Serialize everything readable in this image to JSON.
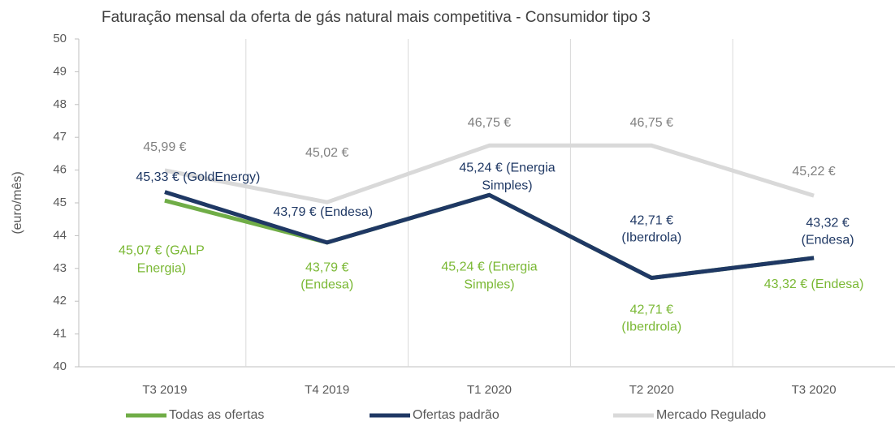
{
  "chart_data": {
    "type": "line",
    "title": "Faturação mensal da oferta de gás natural mais competitiva - Consumidor tipo 3",
    "y_label": "(euro/mês)",
    "categories": [
      "T3 2019",
      "T4 2019",
      "T1 2020",
      "T2 2020",
      "T3 2020"
    ],
    "series": [
      {
        "name": "Mercado Regulado",
        "color": "#d9d9d9",
        "label_color": "#808080",
        "values": [
          45.99,
          45.02,
          46.75,
          46.75,
          45.22
        ],
        "value_labels": [
          "45,99 €",
          "45,02 €",
          "46,75 €",
          "46,75 €",
          "45,22 €"
        ]
      },
      {
        "name": "Todas as ofertas",
        "color": "#70ad47",
        "label_color": "#7ab834",
        "values": [
          45.07,
          43.79,
          45.24,
          42.71,
          43.32
        ],
        "value_labels": [
          "45,07 € (GALP Energia)",
          "43,79 € (Endesa)",
          "45,24 € (Energia Simples)",
          "42,71 € (Iberdrola)",
          "43,32 € (Endesa)"
        ]
      },
      {
        "name": "Ofertas padrão",
        "color": "#1f3864",
        "label_color": "#1f3864",
        "values": [
          45.33,
          43.79,
          45.24,
          42.71,
          43.32
        ],
        "value_labels": [
          "45,33 € (GoldEnergy)",
          "43,79 € (Endesa)",
          "45,24 € (Energia Simples)",
          "42,71 € (Iberdrola)",
          "43,32 € (Endesa)"
        ]
      }
    ],
    "legend_order": [
      1,
      2,
      0
    ],
    "ylim": [
      40,
      50
    ],
    "yticks": [
      40,
      41,
      42,
      43,
      44,
      45,
      46,
      47,
      48,
      49,
      50
    ],
    "grid": true,
    "legend": "bottom"
  }
}
